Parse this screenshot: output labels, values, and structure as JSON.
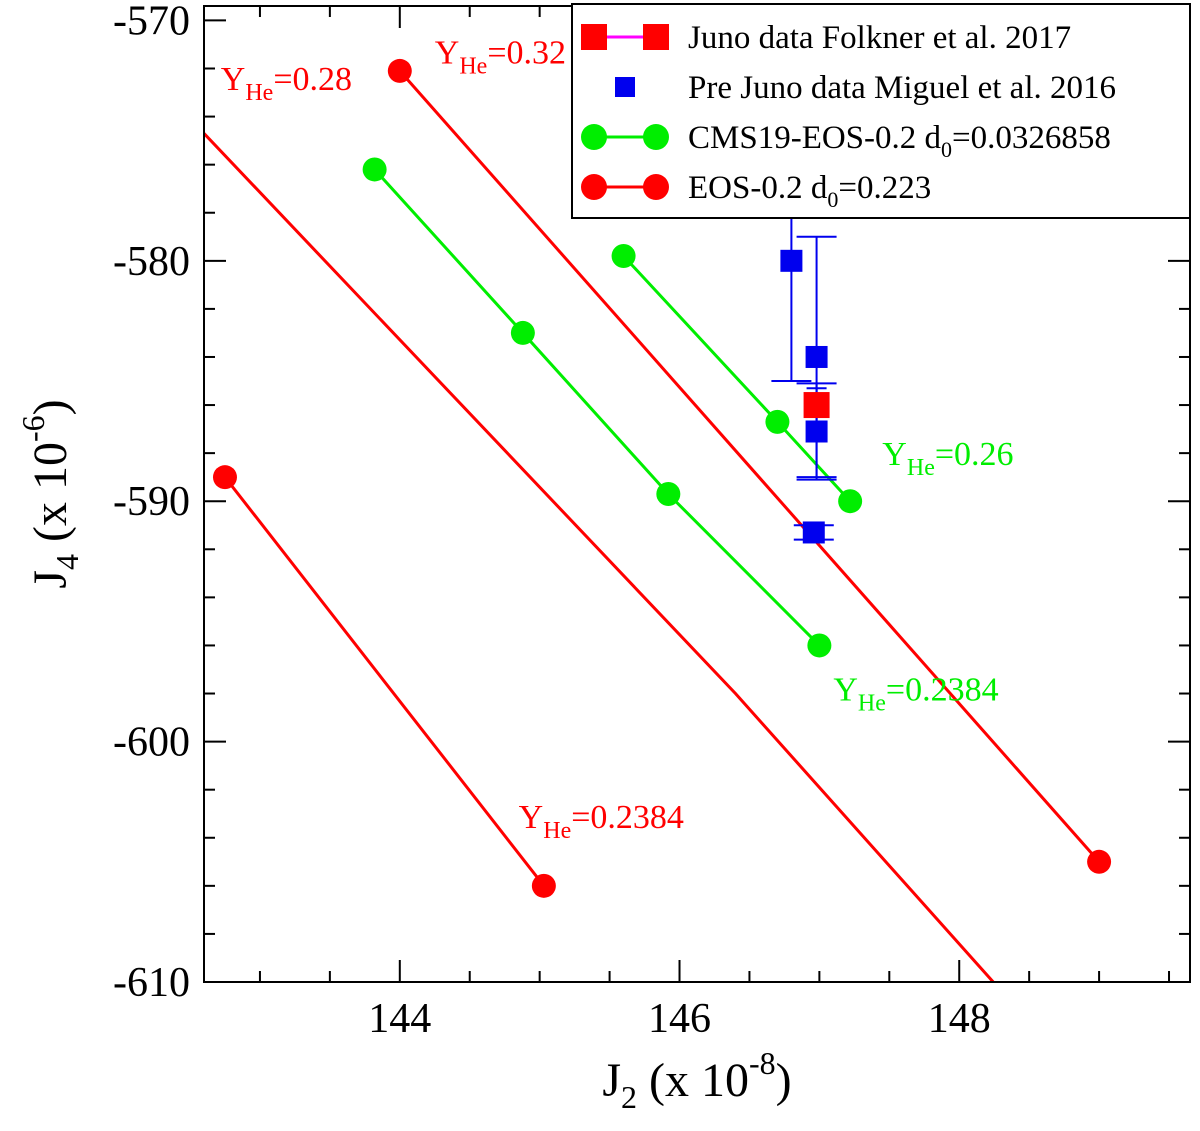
{
  "chart_data": {
    "type": "scatter",
    "xlabel": {
      "base": "J",
      "sub": "2",
      "mid": " (x 10",
      "sup": "-8",
      "end": ")"
    },
    "ylabel": {
      "base": "J",
      "sub": "4",
      "mid": " (x 10",
      "sup": "-6",
      "end": ")"
    },
    "xlim": [
      142.6,
      149.65
    ],
    "ylim": [
      -610,
      -569.4
    ],
    "xticks": [
      144,
      146,
      148
    ],
    "yticks": [
      -570,
      -580,
      -590,
      -600,
      -610
    ],
    "series": [
      {
        "name": "CMS19-EOS-0.2 d0=0.0326858",
        "color": "#00ee00",
        "marker": "circle",
        "segments": [
          [
            [
              143.82,
              -576.2
            ],
            [
              144.88,
              -583.0
            ],
            [
              145.92,
              -589.7
            ],
            [
              147.0,
              -596.0
            ]
          ],
          [
            [
              145.6,
              -579.8
            ],
            [
              146.7,
              -586.7
            ],
            [
              147.22,
              -590.0
            ]
          ]
        ]
      },
      {
        "name": "EOS-0.2 d0=0.223",
        "color": "#ff0000",
        "marker": "circle",
        "segments": [
          [
            [
              142.75,
              -589.0
            ],
            [
              145.03,
              -606.0
            ]
          ],
          [
            [
              144.0,
              -572.1
            ],
            [
              149.0,
              -605.0
            ]
          ]
        ],
        "lines": [
          [
            [
              142.6,
              -574.7
            ],
            [
              146.4,
              -598.0
            ],
            [
              148.32,
              -610.5
            ]
          ]
        ]
      }
    ],
    "data_points": {
      "juno": {
        "name": "Juno data Folkner et al. 2017",
        "color": "#ff0000",
        "points": [
          [
            146.98,
            -586.0
          ]
        ],
        "error": [
          0.7
        ]
      },
      "pre_juno": {
        "name": "Pre Juno data Miguel et al. 2016",
        "color": "#0000ee",
        "points": [
          [
            146.8,
            -580.0
          ],
          [
            146.98,
            -584.0
          ],
          [
            146.98,
            -587.1
          ],
          [
            146.96,
            -591.3
          ]
        ],
        "error": [
          5.0,
          5.0,
          2.0,
          0.3
        ]
      }
    },
    "annotations": [
      {
        "base": "Y",
        "sub": "He",
        "rest": "=0.28",
        "color": "#ff0000",
        "x": 142.72,
        "y": -572.9
      },
      {
        "base": "Y",
        "sub": "He",
        "rest": "=0.32",
        "color": "#ff0000",
        "x": 144.25,
        "y": -571.8
      },
      {
        "base": "Y",
        "sub": "He",
        "rest": "=0.26",
        "color": "#00ee00",
        "x": 147.45,
        "y": -588.5
      },
      {
        "base": "Y",
        "sub": "He",
        "rest": "=0.2384",
        "color": "#00ee00",
        "x": 147.1,
        "y": -598.3
      },
      {
        "base": "Y",
        "sub": "He",
        "rest": "=0.2384",
        "color": "#ff0000",
        "x": 144.85,
        "y": -603.6
      }
    ],
    "legend": {
      "placement": "top-right",
      "entries": [
        {
          "pre": "Juno data Folkner et al. 2017",
          "sub": "",
          "post": "",
          "marker": "square",
          "line": true,
          "line_color": "#ff00ff",
          "color": "#ff0000"
        },
        {
          "pre": "Pre Juno data Miguel et al. 2016",
          "sub": "",
          "post": "",
          "marker": "square-small",
          "line": false,
          "line_color": "#0000ee",
          "color": "#0000ee"
        },
        {
          "pre": "CMS19-EOS-0.2 d",
          "sub": "0",
          "post": "=0.0326858",
          "marker": "circle",
          "line": true,
          "line_color": "#00ee00",
          "color": "#00ee00"
        },
        {
          "pre": "EOS-0.2 d",
          "sub": "0",
          "post": "=0.223",
          "marker": "circle",
          "line": true,
          "line_color": "#ff0000",
          "color": "#ff0000"
        }
      ]
    }
  }
}
